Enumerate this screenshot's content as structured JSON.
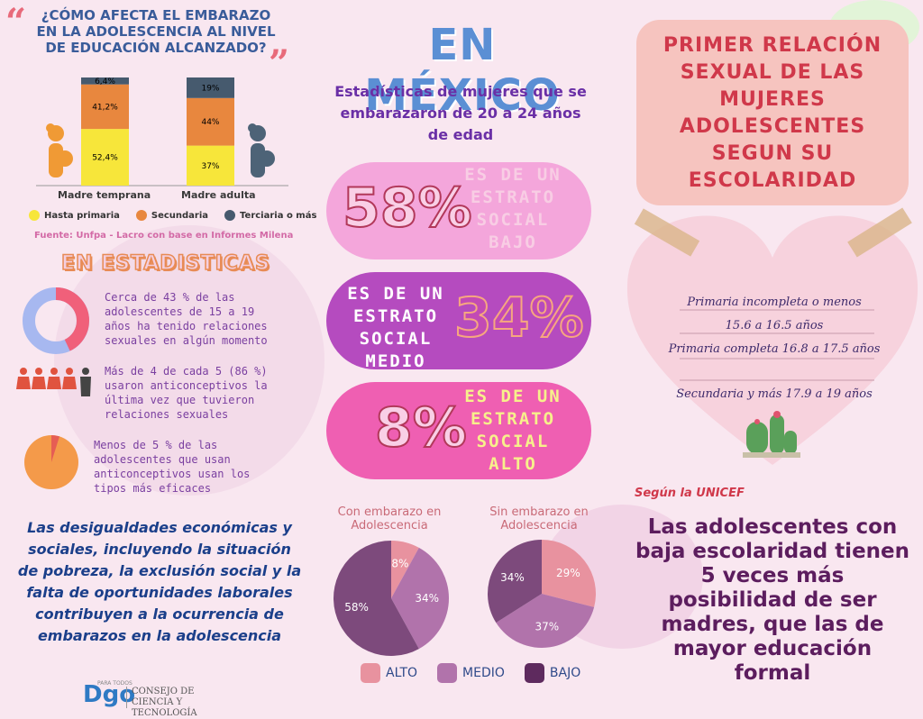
{
  "left": {
    "question_title": "¿CÓMO AFECTA EL EMBARAZO EN LA ADOLESCENCIA AL NIVEL DE EDUCACIÓN ALCANZADO?",
    "fuente": "Fuente: Unfpa - Lacro con base en Informes Milena",
    "estadisticas_title": "EN ESTADISTICAS",
    "stats": [
      {
        "text": "Cerca de 43 % de las adolescentes de 15 a 19 años ha tenido relaciones sexuales en algún momento"
      },
      {
        "text": "Más de 4 de cada 5 (86 %) usaron anticonceptivos la última vez que tuvieron relaciones sexuales"
      },
      {
        "text": "Menos de 5 % de las adolescentes que usan anticonceptivos usan los tipos más eficaces"
      }
    ],
    "bottom_text": "Las desigualdades económicas y sociales, incluyendo la situación de pobreza, la exclusión social y la falta de oportunidades laborales contribuyen a la ocurrencia de embarazos en la adolescencia",
    "colors": {
      "primaria": "#f7e63a",
      "secundaria": "#e8873e",
      "terciaria": "#465a6e"
    }
  },
  "chart_data": [
    {
      "type": "bar",
      "stacked": true,
      "categories": [
        "Madre temprana",
        "Madre adulta"
      ],
      "series": [
        {
          "name": "Hasta primaria",
          "values": [
            52.4,
            37
          ]
        },
        {
          "name": "Secundaria",
          "values": [
            41.2,
            44
          ]
        },
        {
          "name": "Terciaria o más",
          "values": [
            6.4,
            19
          ]
        }
      ],
      "labels": [
        [
          "52,4%",
          "41,2%",
          "6,4%"
        ],
        [
          "37%",
          "44%",
          "19%"
        ]
      ]
    },
    {
      "type": "pie",
      "title": "Con embarazo en Adolescencia",
      "slices": [
        {
          "name": "ALTO",
          "value": 8,
          "label": "8%"
        },
        {
          "name": "MEDIO",
          "value": 34,
          "label": "34%"
        },
        {
          "name": "BAJO",
          "value": 58,
          "label": "58%"
        }
      ]
    },
    {
      "type": "pie",
      "title": "Sin embarazo en Adolescencia",
      "slices": [
        {
          "name": "ALTO",
          "value": 29,
          "label": "29%"
        },
        {
          "name": "MEDIO",
          "value": 37,
          "label": "37%"
        },
        {
          "name": "BAJO",
          "value": 34,
          "label": "34%"
        }
      ]
    }
  ],
  "center": {
    "title": "EN MÉXICO",
    "subtitle": "Estadísticas de mujeres que se embarazaron de 20 a 24 años de edad",
    "pills": [
      {
        "pct": "58%",
        "text": "ES DE UN ESTRATO SOCIAL BAJO"
      },
      {
        "pct": "34%",
        "text": "ES DE UN ESTRATO SOCIAL MEDIO"
      },
      {
        "pct": "8%",
        "text": "ES DE UN ESTRATO SOCIAL ALTO"
      }
    ],
    "pie_titles": [
      "Con embarazo en Adolescencia",
      "Sin embarazo en Adolescencia"
    ],
    "legend": [
      "ALTO",
      "MEDIO",
      "BAJO"
    ],
    "colors": {
      "alto": "#e8929f",
      "medio": "#b173ab",
      "bajo": "#7d4a7c"
    }
  },
  "right": {
    "title": "PRIMER RELACIÓN SEXUAL DE LAS MUJERES ADOLESCENTES SEGUN SU ESCOLARIDAD",
    "heart_lines": [
      "Primaria incompleta o menos",
      "15.6 a 16.5 años",
      "Primaria completa 16.8 a 17.5 años",
      "Secundaria y más 17.9 a 19 años"
    ],
    "unicef": "Según la UNICEF",
    "bottom_text": "Las adolescentes con baja escolaridad tienen 5 veces más posibilidad de ser madres, que las de mayor educación formal"
  },
  "footer": {
    "logo": "Dgo",
    "logo_small": "PARA TODOS",
    "org": "CONSEJO DE CIENCIA Y TECNOLOGÍA"
  }
}
